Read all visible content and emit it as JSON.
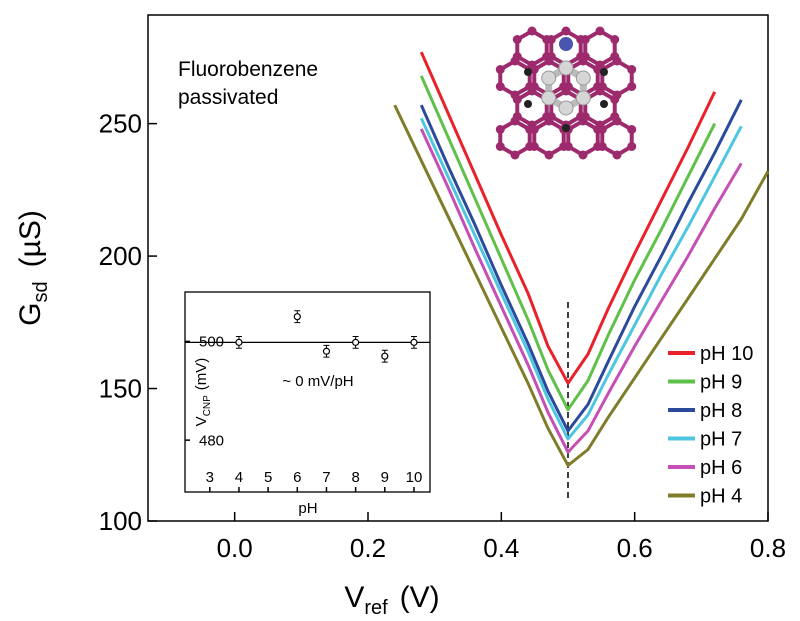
{
  "chart_data": [
    {
      "type": "line",
      "annotation": [
        "Fluorobenzene",
        "passivated"
      ],
      "xlabel": "V",
      "xlabel_sub": "ref",
      "xlabel_unit": "(V)",
      "ylabel": "G",
      "ylabel_sub": "sd",
      "ylabel_unit": "(µS)",
      "x": [
        0.24,
        0.28,
        0.32,
        0.36,
        0.4,
        0.44,
        0.47,
        0.5,
        0.53,
        0.56,
        0.6,
        0.64,
        0.68,
        0.72,
        0.76,
        0.8
      ],
      "series": [
        {
          "name": "pH 10",
          "color": "#e8212b",
          "values": [
            null,
            277,
            254,
            231,
            208,
            186,
            166,
            152,
            163,
            180,
            201,
            221,
            241,
            262,
            null,
            null
          ]
        },
        {
          "name": "pH 9",
          "color": "#5fc04a",
          "values": [
            null,
            268,
            245,
            222,
            199,
            176,
            157,
            142,
            153,
            170,
            191,
            210,
            230,
            250,
            null,
            null
          ]
        },
        {
          "name": "pH 8",
          "color": "#2b4a9c",
          "values": [
            null,
            257,
            234,
            212,
            189,
            167,
            149,
            134,
            144,
            160,
            181,
            200,
            220,
            239,
            259,
            null
          ]
        },
        {
          "name": "pH 7",
          "color": "#4fc6e0",
          "values": [
            null,
            252,
            230,
            208,
            186,
            164,
            146,
            131,
            140,
            155,
            174,
            193,
            211,
            230,
            249,
            null
          ]
        },
        {
          "name": "pH 6",
          "color": "#c54fb4",
          "values": [
            null,
            248,
            226,
            203,
            181,
            159,
            141,
            126,
            134,
            148,
            166,
            183,
            200,
            218,
            235,
            null
          ]
        },
        {
          "name": "pH 4",
          "color": "#7f7c2a",
          "values": [
            257,
            236,
            215,
            194,
            173,
            152,
            135,
            121,
            127,
            139,
            154,
            169,
            184,
            199,
            214,
            232
          ]
        }
      ],
      "vline": 0.5,
      "xlim": [
        -0.13,
        0.8
      ],
      "xticks": [
        {
          "value": 0,
          "label": "0.0"
        },
        0.2,
        0.4,
        0.6,
        0.8
      ],
      "ylim": [
        100,
        291
      ],
      "yticks": [
        100,
        150,
        200,
        250
      ],
      "legend": "lower right"
    },
    {
      "type": "scatter",
      "annotation": "~ 0 mV/pH",
      "xlabel": "pH",
      "ylabel": "V",
      "ylabel_sub": "CNP",
      "ylabel_unit": "(mV)",
      "x": [
        4,
        6,
        7,
        8,
        9,
        10
      ],
      "values": [
        499.8,
        505,
        498,
        499.8,
        497,
        499.8
      ],
      "errors": [
        1.2,
        1.2,
        1.2,
        1.2,
        1.2,
        1.2
      ],
      "fit": 499.8,
      "color": "#000000",
      "xlim": [
        2.15,
        10.55
      ],
      "xticks": [
        3,
        4,
        5,
        6,
        7,
        8,
        9,
        10
      ],
      "ylim": [
        469.5,
        510
      ],
      "yticks": [
        480,
        500
      ]
    }
  ]
}
